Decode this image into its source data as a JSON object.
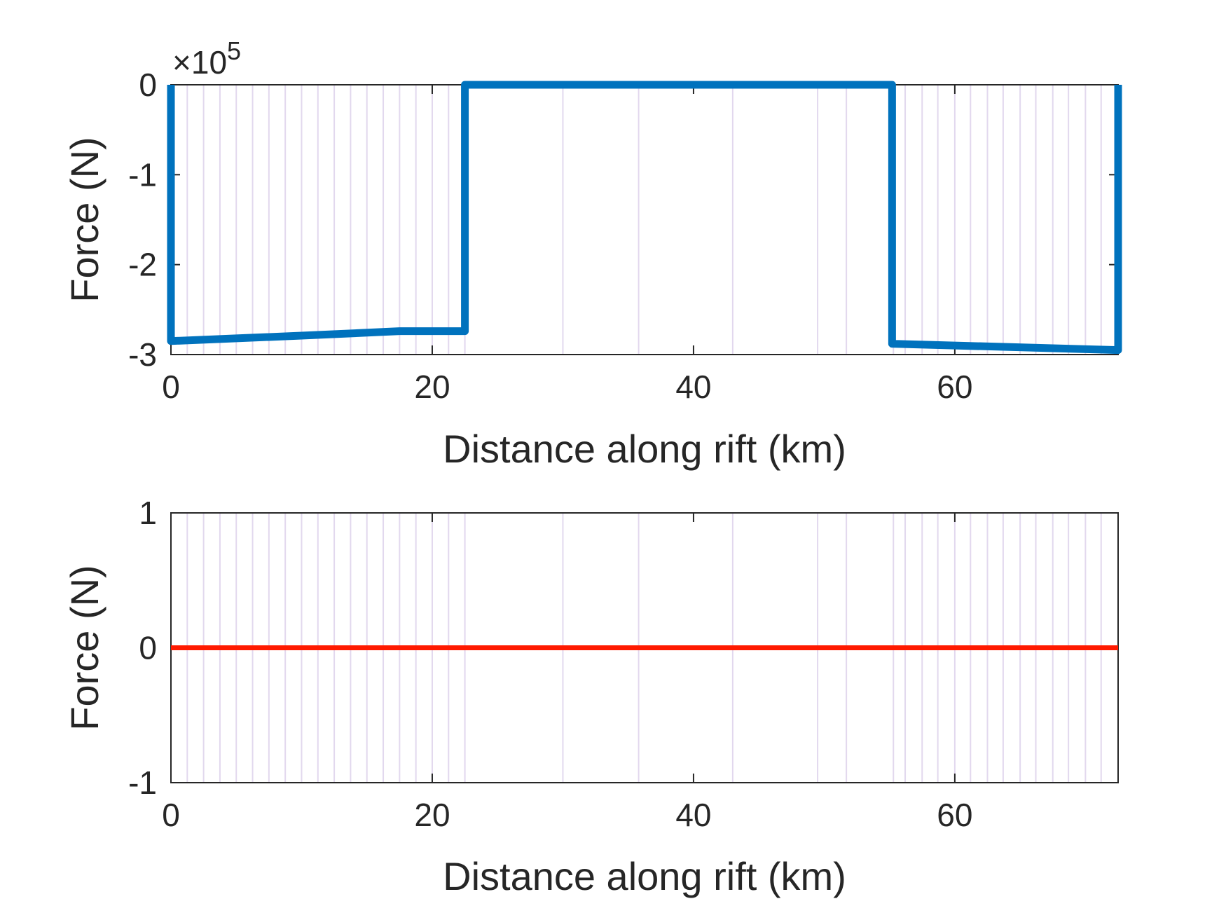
{
  "chart_data": [
    {
      "type": "line",
      "xlabel": "Distance along rift (km)",
      "ylabel": "Force (N)",
      "xlim": [
        0,
        72.5
      ],
      "ylim": [
        -3,
        0
      ],
      "x_ticks": [
        0,
        20,
        40,
        60
      ],
      "y_ticks": [
        0,
        -1,
        -2,
        -3
      ],
      "x_tick_labels": [
        "0",
        "20",
        "40",
        "60"
      ],
      "y_tick_labels": [
        "0",
        "-1",
        "-2",
        "-3"
      ],
      "y_exponent_label": "×10",
      "y_exponent_power": "5",
      "grid": false,
      "vertical_reference_lines": [
        1.25,
        2.5,
        3.75,
        5,
        6.25,
        7.5,
        8.75,
        10,
        11.25,
        12.5,
        13.75,
        15,
        16.25,
        17.5,
        18.75,
        20,
        21.25,
        22.5,
        30,
        35.8,
        43,
        49.5,
        51.7,
        55.3,
        56.2,
        57.5,
        58.7,
        60,
        61.2,
        62.5,
        63.7,
        65,
        66.2,
        67.5,
        68.7,
        70,
        71.2
      ],
      "reference_line_color": "#e2d8ee",
      "series": [
        {
          "color": "#0072bd",
          "x": [
            0,
            0,
            5,
            10,
            17.5,
            22.5,
            22.5,
            55.2,
            55.2,
            72.5,
            72.5
          ],
          "y": [
            0,
            -2.85,
            -2.82,
            -2.79,
            -2.74,
            -2.74,
            0,
            0,
            -2.88,
            -2.95,
            0
          ]
        }
      ]
    },
    {
      "type": "line",
      "xlabel": "Distance along rift (km)",
      "ylabel": "Force (N)",
      "xlim": [
        0,
        72.5
      ],
      "ylim": [
        -1,
        1
      ],
      "x_ticks": [
        0,
        20,
        40,
        60
      ],
      "y_ticks": [
        1,
        0,
        -1
      ],
      "x_tick_labels": [
        "0",
        "20",
        "40",
        "60"
      ],
      "y_tick_labels": [
        "1",
        "0",
        "-1"
      ],
      "grid": false,
      "vertical_reference_lines": [
        1.25,
        2.5,
        3.75,
        5,
        6.25,
        7.5,
        8.75,
        10,
        11.25,
        12.5,
        13.75,
        15,
        16.25,
        17.5,
        18.75,
        20,
        21.25,
        22.5,
        30,
        35.8,
        43,
        49.5,
        51.7,
        55.3,
        56.2,
        57.5,
        58.7,
        60,
        61.2,
        62.5,
        63.7,
        65,
        66.2,
        67.5,
        68.7,
        70,
        71.2
      ],
      "reference_line_color": "#e2d8ee",
      "series": [
        {
          "color": "#ff1a00",
          "x": [
            0,
            72.5
          ],
          "y": [
            0,
            0
          ]
        }
      ]
    }
  ]
}
